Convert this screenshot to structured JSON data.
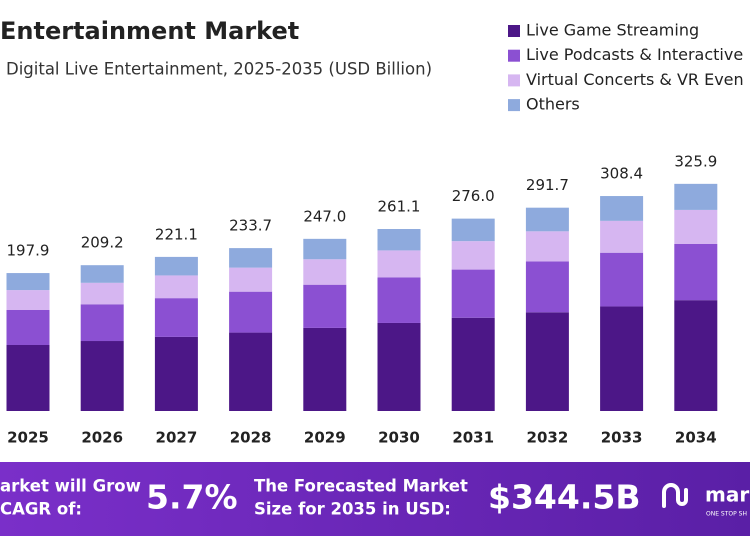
{
  "chart_data": {
    "type": "bar",
    "stacked": true,
    "title": "Entertainment Market",
    "subtitle": "Digital Live Entertainment, 2025-2035 (USD Billion)",
    "categories": [
      "2025",
      "2026",
      "2027",
      "2028",
      "2029",
      "2030",
      "2031",
      "2032",
      "2033",
      "2034"
    ],
    "series": [
      {
        "name": "Live Game Streaming",
        "color": "#4c1787",
        "values": [
          94.7,
          100.4,
          106.3,
          112.5,
          119.2,
          126.3,
          133.8,
          141.6,
          150.0,
          159.0
        ]
      },
      {
        "name": "Live Podcasts & Interactive",
        "color": "#8b50d2",
        "values": [
          50.2,
          52.7,
          55.6,
          58.7,
          62.0,
          65.5,
          69.1,
          73.0,
          77.1,
          80.6
        ]
      },
      {
        "name": "Virtual Concerts & VR Even",
        "color": "#d6b6f1",
        "values": [
          28.6,
          30.8,
          32.6,
          34.5,
          36.5,
          38.6,
          40.8,
          43.2,
          45.7,
          48.9
        ]
      },
      {
        "name": "Others",
        "color": "#8eaadd",
        "values": [
          24.4,
          25.3,
          26.6,
          28.0,
          29.3,
          30.7,
          32.3,
          33.9,
          35.6,
          37.4
        ]
      }
    ],
    "totals": [
      197.9,
      209.2,
      221.1,
      233.7,
      247.0,
      261.1,
      276.0,
      291.7,
      308.4,
      325.9
    ],
    "value_labels": [
      "197.9",
      "209.2",
      "221.1",
      "233.7",
      "247.0",
      "261.1",
      "276.0",
      "291.7",
      "308.4",
      "325.9"
    ],
    "legend": "top-right"
  },
  "banner": {
    "cagr_text": [
      "arket will Grow",
      "CAGR of:"
    ],
    "cagr": "5.7%",
    "forecast_text": [
      "The Forecasted Market",
      "Size for 2035 in USD:"
    ],
    "forecast": "$344.5B",
    "logo": "mar",
    "tagline": "ONE STOP SH"
  }
}
